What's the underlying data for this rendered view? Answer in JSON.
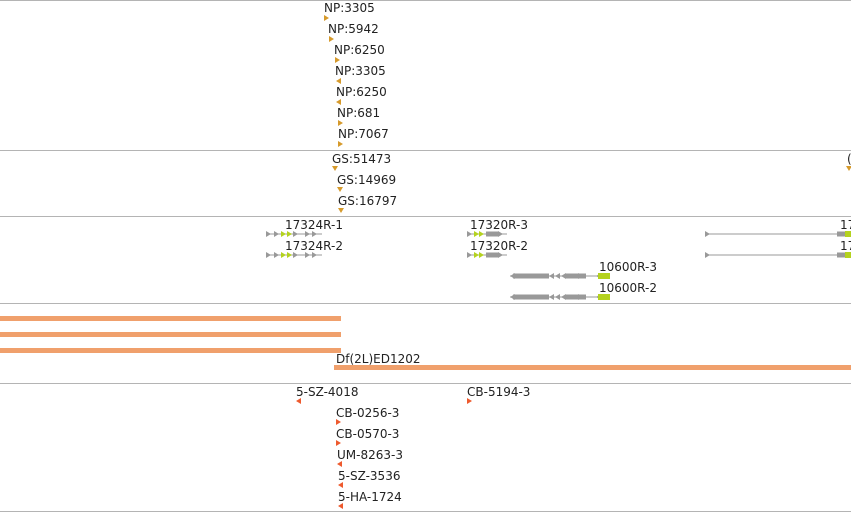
{
  "colors": {
    "orange_marker": "#d69a2c",
    "red_marker": "#ee5a2e",
    "deficiency_bar": "#f0a06c",
    "gene_grey": "#999999",
    "exon_green": "#b4d21e",
    "divider": "#b4b4b4"
  },
  "np_track": {
    "items": [
      "NP:3305",
      "NP:5942",
      "NP:6250",
      "NP:3305",
      "NP:6250",
      "NP:681",
      "NP:7067"
    ]
  },
  "gs_track": {
    "items": [
      "GS:51473",
      "GS:14969",
      "GS:16797"
    ]
  },
  "gene_track": {
    "labels": [
      "17324R-1",
      "17324R-2",
      "17320R-3",
      "17320R-2",
      "10600R-3",
      "10600R-2"
    ],
    "edge_labels": [
      "17",
      "17"
    ]
  },
  "deficiency_track": {
    "label": "Df(2L)ED1202"
  },
  "stock_track": {
    "items": [
      "5-SZ-4018",
      "CB-5194-3",
      "CB-0256-3",
      "CB-0570-3",
      "UM-8263-3",
      "5-SZ-3536",
      "5-HA-1724"
    ]
  }
}
